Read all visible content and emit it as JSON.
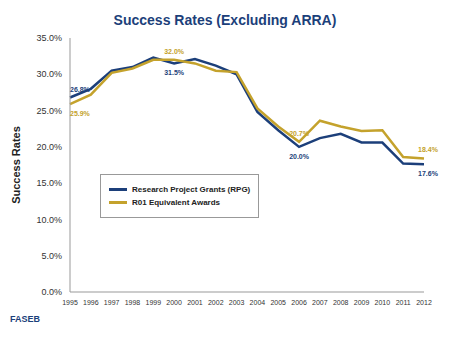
{
  "chart_data": {
    "type": "line",
    "title": "Success Rates (Excluding ARRA)",
    "y_label": "Success Rates",
    "source": "FASEB",
    "categories": [
      "1995",
      "1996",
      "1997",
      "1998",
      "1999",
      "2000",
      "2001",
      "2002",
      "2003",
      "2004",
      "2005",
      "2006",
      "2007",
      "2008",
      "2009",
      "2010",
      "2011",
      "2012"
    ],
    "series": [
      {
        "name": "Research Project Grants (RPG)",
        "color": "#1c3f7a",
        "values": [
          26.8,
          28.0,
          30.5,
          31.0,
          32.3,
          31.5,
          32.1,
          31.2,
          30.0,
          24.8,
          22.3,
          20.0,
          21.2,
          21.8,
          20.6,
          20.6,
          17.7,
          17.6
        ],
        "value_labels": [
          "26.8%",
          null,
          null,
          null,
          null,
          "31.5%",
          null,
          null,
          null,
          null,
          null,
          "20.0%",
          null,
          null,
          null,
          null,
          null,
          "17.6%"
        ]
      },
      {
        "name": "R01 Equivalent Awards",
        "color": "#c4a22c",
        "values": [
          25.9,
          27.2,
          30.2,
          30.8,
          32.0,
          32.0,
          31.5,
          30.5,
          30.3,
          25.3,
          22.8,
          20.7,
          23.6,
          22.8,
          22.2,
          22.3,
          18.6,
          18.4
        ],
        "value_labels": [
          "25.9%",
          null,
          null,
          null,
          null,
          "32.0%",
          null,
          null,
          null,
          null,
          null,
          "20.7%",
          null,
          null,
          null,
          null,
          null,
          "18.4%"
        ]
      }
    ],
    "ylim": [
      0,
      35
    ],
    "yticks": [
      {
        "value": 0,
        "label": "0.0%"
      },
      {
        "value": 5,
        "label": "5.0%"
      },
      {
        "value": 10,
        "label": "10.0%"
      },
      {
        "value": 15,
        "label": "15.0%"
      },
      {
        "value": 20,
        "label": "20.0%"
      },
      {
        "value": 25,
        "label": "25.0%"
      },
      {
        "value": 30,
        "label": "30.0%"
      },
      {
        "value": 35,
        "label": "35.0%"
      }
    ],
    "grid": false,
    "legend": "left"
  }
}
